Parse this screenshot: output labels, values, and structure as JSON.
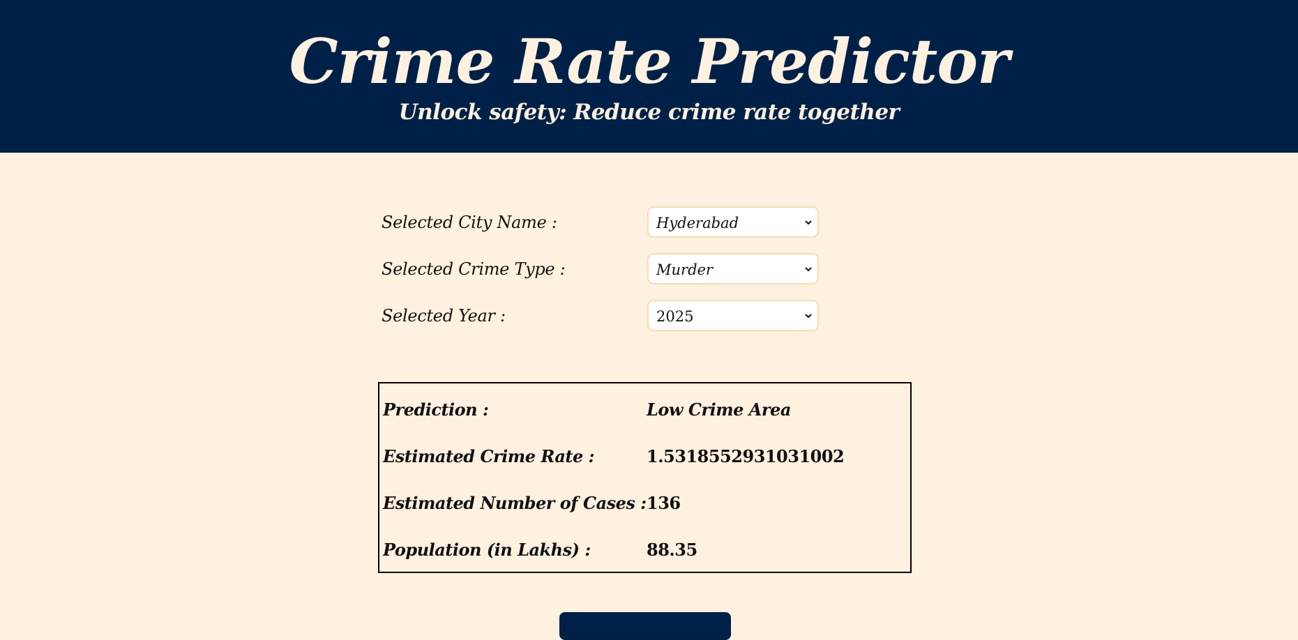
{
  "header": {
    "title": "Crime Rate Predictor",
    "subtitle": "Unlock safety: Reduce crime rate together"
  },
  "form": {
    "city": {
      "label": "Selected City Name :",
      "value": "Hyderabad"
    },
    "crime_type": {
      "label": "Selected Crime Type :",
      "value": "Murder"
    },
    "year": {
      "label": "Selected Year :",
      "value": "2025"
    }
  },
  "results": {
    "prediction": {
      "label": "Prediction :",
      "value": "Low Crime Area"
    },
    "crime_rate": {
      "label": "Estimated Crime Rate :",
      "value": "1.5318552931031002"
    },
    "cases": {
      "label": "Estimated Number of Cases :",
      "value": "136"
    },
    "population": {
      "label": "Population (in Lakhs) :",
      "value": "88.35"
    }
  },
  "colors": {
    "header_bg": "#002147",
    "page_bg": "#fff1df",
    "accent_text": "#fff1df",
    "select_border": "#f8dcb5"
  },
  "icons": {
    "dropdown": "chevron-down-icon"
  }
}
